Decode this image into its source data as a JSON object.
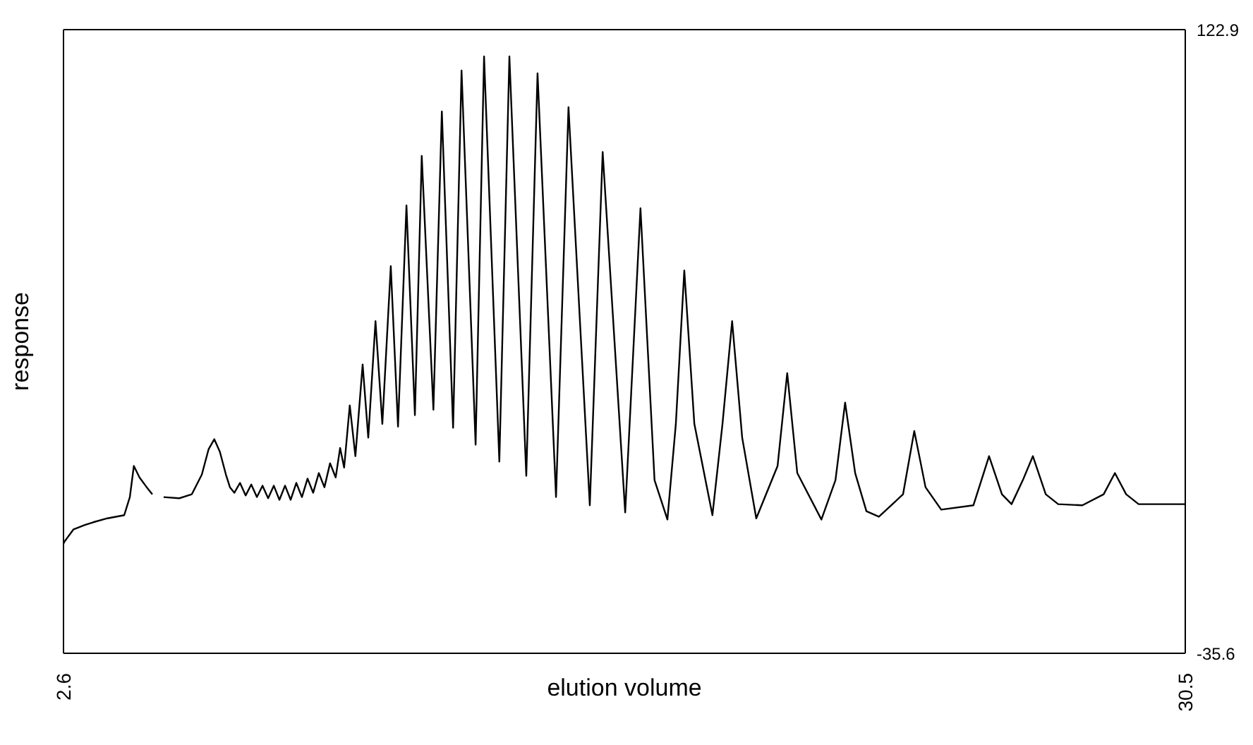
{
  "chart_data": {
    "type": "line",
    "xlabel": "elution volume",
    "ylabel": "response",
    "xlim": [
      2.6,
      30.5
    ],
    "xticks": [
      2.6,
      30.5
    ],
    "ylim": [
      -35.6,
      122.9
    ],
    "yticks": [
      -35.6,
      122.9
    ],
    "marker": "none",
    "line_style": "solid",
    "x": [
      2.6,
      2.64,
      2.85,
      3.13,
      3.34,
      3.69,
      4.11,
      4.25,
      4.35,
      4.49,
      4.67,
      4.81,
      4.95,
      5.09,
      5.48,
      5.79,
      6.04,
      6.21,
      6.35,
      6.49,
      6.64,
      6.74,
      6.85,
      6.99,
      7.13,
      7.27,
      7.41,
      7.55,
      7.69,
      7.83,
      7.97,
      8.11,
      8.25,
      8.39,
      8.53,
      8.67,
      8.81,
      8.95,
      9.09,
      9.23,
      9.37,
      9.48,
      9.58,
      9.72,
      9.86,
      10.04,
      10.18,
      10.36,
      10.53,
      10.74,
      10.92,
      11.13,
      11.34,
      11.51,
      11.8,
      12.01,
      12.29,
      12.5,
      12.85,
      13.06,
      13.44,
      13.69,
      14.11,
      14.39,
      14.85,
      15.16,
      15.69,
      16.01,
      16.57,
      16.95,
      17.3,
      17.62,
      17.83,
      18.04,
      18.29,
      18.74,
      18.99,
      19.23,
      19.48,
      19.83,
      20.36,
      20.6,
      20.85,
      21.45,
      21.8,
      22.04,
      22.29,
      22.57,
      22.88,
      23.48,
      23.76,
      24.04,
      24.43,
      25.23,
      25.62,
      25.94,
      26.18,
      26.46,
      26.71,
      27.03,
      27.34,
      27.94,
      28.47,
      28.75,
      29.03,
      29.34,
      30.5
    ],
    "series": [
      {
        "color": "#000000",
        "values": [
          -7.7,
          -7.0,
          -4.1,
          -3.0,
          -2.3,
          -1.3,
          -0.5,
          4.1,
          12.0,
          9.1,
          6.6,
          4.8,
          null,
          4.1,
          3.8,
          4.8,
          9.8,
          16.3,
          18.8,
          15.6,
          9.8,
          6.6,
          5.2,
          7.7,
          4.5,
          7.3,
          4.1,
          7.0,
          3.8,
          7.0,
          3.4,
          7.0,
          3.4,
          7.7,
          4.1,
          8.8,
          5.2,
          10.2,
          6.6,
          12.7,
          9.1,
          16.6,
          11.6,
          27.4,
          14.5,
          37.8,
          19.2,
          48.8,
          22.7,
          62.8,
          22.0,
          78.2,
          24.9,
          90.8,
          26.3,
          102.1,
          21.7,
          112.5,
          17.4,
          116.1,
          13.1,
          116.1,
          9.5,
          111.8,
          4.1,
          103.2,
          2.0,
          91.8,
          0.2,
          77.5,
          8.4,
          -1.6,
          22.7,
          61.7,
          22.7,
          -0.5,
          22.7,
          48.8,
          19.2,
          -1.3,
          12.0,
          35.6,
          10.2,
          -1.6,
          8.4,
          28.1,
          10.2,
          0.5,
          -0.9,
          4.8,
          20.9,
          6.6,
          0.9,
          2.0,
          14.5,
          4.8,
          2.3,
          8.4,
          14.5,
          4.8,
          2.3,
          2.0,
          4.8,
          10.2,
          4.8,
          2.3,
          2.3
        ]
      }
    ]
  }
}
